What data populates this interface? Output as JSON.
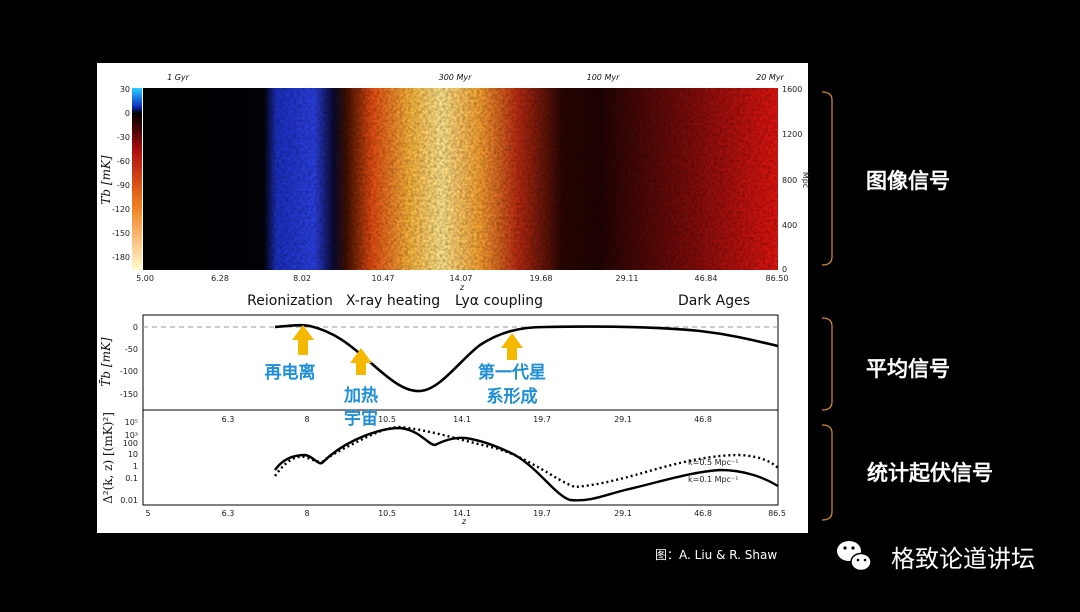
{
  "figure": {
    "top_axis_labels": [
      "1 Gyr",
      "300 Myr",
      "100 Myr",
      "20 Myr"
    ],
    "tb_label": "Tb [mK]",
    "colorbar_ticks": [
      "30",
      "0",
      "-30",
      "-60",
      "-90",
      "-120",
      "-150",
      "-180"
    ],
    "depth_label": "Mpc",
    "depth_ticks": [
      "1600",
      "1200",
      "800",
      "400",
      "0"
    ],
    "z_ticks": [
      "5.00",
      "6.28",
      "8.02",
      "10.47",
      "14.07",
      "19.68",
      "29.11",
      "46.84",
      "86.50"
    ],
    "z_label": "z",
    "eras": [
      "Reionization",
      "X-ray heating",
      "Lyα coupling",
      "Dark Ages"
    ],
    "mean": {
      "ylabel": "T̄b [mK]",
      "yticks": [
        "0",
        "-50",
        "-100",
        "-150"
      ],
      "xticks": [
        "6.3",
        "8",
        "10.5",
        "14.1",
        "19.7",
        "29.1",
        "46.8"
      ],
      "annotations": [
        "再电离",
        "加热",
        "宇宙",
        "第一代星",
        "系形成"
      ]
    },
    "power": {
      "ylabel": "Δ²(k, z) [(mK)²]",
      "yticks": [
        "10⁵",
        "10³",
        "100",
        "10",
        "1",
        "0.1",
        "0.01"
      ],
      "xticks": [
        "5",
        "6.3",
        "8",
        "10.5",
        "14.1",
        "19.7",
        "29.1",
        "46.8",
        "86.5"
      ],
      "xlabel": "z",
      "legend": [
        "k=0.5 Mpc⁻¹",
        "k=0.1 Mpc⁻¹"
      ]
    }
  },
  "side_labels": [
    "图像信号",
    "平均信号",
    "统计起伏信号"
  ],
  "caption": "图：A. Liu & R. Shaw",
  "brand": "格致论道讲坛"
}
